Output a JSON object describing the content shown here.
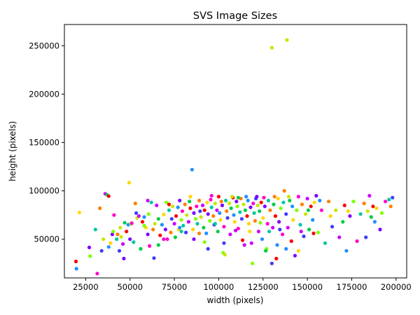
{
  "chart_data": {
    "type": "scatter",
    "title": "SVS Image Sizes",
    "xlabel": "width (pixels)",
    "ylabel": "height (pixels)",
    "xlim": [
      13000,
      206000
    ],
    "ylim": [
      10000,
      272000
    ],
    "xticks": [
      25000,
      50000,
      75000,
      100000,
      125000,
      150000,
      175000,
      200000
    ],
    "yticks": [
      50000,
      100000,
      150000,
      200000,
      250000
    ],
    "grid": false,
    "colors": [
      "#ff0000",
      "#ff7f00",
      "#ffd700",
      "#c8e600",
      "#7fff00",
      "#00cc44",
      "#00c8a0",
      "#1e90ff",
      "#3c3cff",
      "#7f00ff",
      "#cc00ff",
      "#ff00cc"
    ],
    "points": [
      [
        19500,
        27000
      ],
      [
        19800,
        19500
      ],
      [
        21500,
        77500
      ],
      [
        27000,
        41500
      ],
      [
        27500,
        32500
      ],
      [
        31500,
        14500
      ],
      [
        30500,
        60000
      ],
      [
        33000,
        82000
      ],
      [
        34000,
        38000
      ],
      [
        35000,
        50000
      ],
      [
        36000,
        97000
      ],
      [
        37000,
        96000
      ],
      [
        38000,
        94500
      ],
      [
        38000,
        42000
      ],
      [
        39000,
        46000
      ],
      [
        40000,
        55000
      ],
      [
        40500,
        58000
      ],
      [
        41000,
        75000
      ],
      [
        42500,
        50000
      ],
      [
        43000,
        55000
      ],
      [
        44000,
        38000
      ],
      [
        45000,
        52500
      ],
      [
        46000,
        45000
      ],
      [
        47000,
        67000
      ],
      [
        48000,
        58000
      ],
      [
        49000,
        65000
      ],
      [
        49500,
        108500
      ],
      [
        50000,
        50000
      ],
      [
        50500,
        66000
      ],
      [
        51000,
        66500
      ],
      [
        52000,
        47000
      ],
      [
        53000,
        87000
      ],
      [
        53500,
        77000
      ],
      [
        54000,
        72000
      ],
      [
        55000,
        74000
      ],
      [
        56000,
        40000
      ],
      [
        57000,
        68000
      ],
      [
        58000,
        73000
      ],
      [
        59000,
        62000
      ],
      [
        60000,
        55000
      ],
      [
        60500,
        76000
      ],
      [
        61000,
        43000
      ],
      [
        62000,
        88000
      ],
      [
        63000,
        60000
      ],
      [
        63500,
        30500
      ],
      [
        64000,
        66000
      ],
      [
        65000,
        85000
      ],
      [
        66000,
        71000
      ],
      [
        67000,
        54000
      ],
      [
        68000,
        65000
      ],
      [
        69000,
        75500
      ],
      [
        70000,
        60000
      ],
      [
        70500,
        88000
      ],
      [
        71000,
        50000
      ],
      [
        72000,
        80000
      ],
      [
        73000,
        57000
      ],
      [
        73500,
        71000
      ],
      [
        74000,
        84000
      ],
      [
        75000,
        66000
      ],
      [
        75500,
        52000
      ],
      [
        76000,
        74000
      ],
      [
        77000,
        83000
      ],
      [
        77500,
        60000
      ],
      [
        78000,
        90000
      ],
      [
        79000,
        70000
      ],
      [
        79500,
        79000
      ],
      [
        80000,
        64000
      ],
      [
        81000,
        86000
      ],
      [
        81500,
        57000
      ],
      [
        82000,
        75000
      ],
      [
        83000,
        68000
      ],
      [
        83500,
        89000
      ],
      [
        84000,
        82000
      ],
      [
        85000,
        122000
      ],
      [
        85500,
        60000
      ],
      [
        86000,
        77000
      ],
      [
        87000,
        71000
      ],
      [
        87500,
        84000
      ],
      [
        88000,
        66000
      ],
      [
        89000,
        90000
      ],
      [
        89500,
        79000
      ],
      [
        90000,
        73000
      ],
      [
        91000,
        85000
      ],
      [
        91500,
        62000
      ],
      [
        92000,
        80000
      ],
      [
        93000,
        56000
      ],
      [
        93500,
        88000
      ],
      [
        94000,
        76000
      ],
      [
        95000,
        69000
      ],
      [
        95500,
        91000
      ],
      [
        96000,
        83000
      ],
      [
        97000,
        74000
      ],
      [
        97500,
        65000
      ],
      [
        98000,
        87000
      ],
      [
        99000,
        80000
      ],
      [
        99500,
        58000
      ],
      [
        100000,
        94000
      ],
      [
        100500,
        77000
      ],
      [
        101000,
        70000
      ],
      [
        102000,
        85000
      ],
      [
        102500,
        36000
      ],
      [
        103000,
        63000
      ],
      [
        104000,
        90000
      ],
      [
        104500,
        79000
      ],
      [
        105000,
        72000
      ],
      [
        106000,
        87000
      ],
      [
        106500,
        55000
      ],
      [
        107000,
        82000
      ],
      [
        108000,
        93000
      ],
      [
        108500,
        75000
      ],
      [
        109000,
        68000
      ],
      [
        110000,
        89000
      ],
      [
        110500,
        84000
      ],
      [
        111000,
        61000
      ],
      [
        112000,
        78000
      ],
      [
        112500,
        92000
      ],
      [
        113000,
        71000
      ],
      [
        114000,
        86000
      ],
      [
        114500,
        44000
      ],
      [
        115000,
        80000
      ],
      [
        116000,
        74000
      ],
      [
        116500,
        90000
      ],
      [
        117000,
        66000
      ],
      [
        118000,
        83000
      ],
      [
        119000,
        25000
      ],
      [
        119500,
        87000
      ],
      [
        120000,
        77000
      ],
      [
        120500,
        69000
      ],
      [
        121000,
        92000
      ],
      [
        122000,
        85000
      ],
      [
        122500,
        58000
      ],
      [
        123000,
        79000
      ],
      [
        124000,
        88000
      ],
      [
        124500,
        50000
      ],
      [
        125000,
        72000
      ],
      [
        126000,
        84000
      ],
      [
        127000,
        40000
      ],
      [
        127500,
        66000
      ],
      [
        128000,
        90000
      ],
      [
        129000,
        80000
      ],
      [
        130000,
        25000
      ],
      [
        130000,
        248000
      ],
      [
        130500,
        62000
      ],
      [
        131000,
        86000
      ],
      [
        132000,
        74000
      ],
      [
        133000,
        44000
      ],
      [
        133500,
        92000
      ],
      [
        134000,
        68000
      ],
      [
        135000,
        82000
      ],
      [
        136000,
        55000
      ],
      [
        136500,
        88000
      ],
      [
        137000,
        100000
      ],
      [
        138000,
        76000
      ],
      [
        138500,
        256000
      ],
      [
        139000,
        62000
      ],
      [
        140000,
        90000
      ],
      [
        141000,
        48000
      ],
      [
        141500,
        84000
      ],
      [
        142000,
        70000
      ],
      [
        143000,
        33000
      ],
      [
        144000,
        80000
      ],
      [
        145000,
        94000
      ],
      [
        146000,
        65000
      ],
      [
        147000,
        86000
      ],
      [
        148000,
        53000
      ],
      [
        149000,
        76000
      ],
      [
        150000,
        92000
      ],
      [
        151000,
        60000
      ],
      [
        152000,
        84000
      ],
      [
        153000,
        70000
      ],
      [
        154000,
        88000
      ],
      [
        155000,
        95000
      ],
      [
        156000,
        57000
      ],
      [
        158000,
        80000
      ],
      [
        160000,
        46000
      ],
      [
        162000,
        89000
      ],
      [
        164000,
        63000
      ],
      [
        166000,
        80000
      ],
      [
        168000,
        52000
      ],
      [
        170000,
        68000
      ],
      [
        171000,
        85000
      ],
      [
        172000,
        38000
      ],
      [
        173000,
        79000
      ],
      [
        174000,
        74000
      ],
      [
        176000,
        89000
      ],
      [
        178000,
        48000
      ],
      [
        180000,
        76000
      ],
      [
        182000,
        87000
      ],
      [
        183000,
        52000
      ],
      [
        184000,
        79000
      ],
      [
        185000,
        95000
      ],
      [
        186000,
        73000
      ],
      [
        187000,
        84000
      ],
      [
        188000,
        68000
      ],
      [
        189000,
        82000
      ],
      [
        191000,
        60000
      ],
      [
        192000,
        77000
      ],
      [
        194000,
        89000
      ],
      [
        196000,
        91000
      ],
      [
        197000,
        84000
      ],
      [
        198000,
        93000
      ],
      [
        44500,
        62000
      ],
      [
        60000,
        90000
      ],
      [
        66000,
        44000
      ],
      [
        72000,
        86000
      ],
      [
        78000,
        62000
      ],
      [
        84000,
        94000
      ],
      [
        86000,
        50000
      ],
      [
        92000,
        47000
      ],
      [
        96000,
        95000
      ],
      [
        98000,
        66000
      ],
      [
        101500,
        89000
      ],
      [
        103000,
        46000
      ],
      [
        107500,
        94000
      ],
      [
        109500,
        59000
      ],
      [
        111000,
        93000
      ],
      [
        113500,
        49000
      ],
      [
        115500,
        94000
      ],
      [
        117500,
        58000
      ],
      [
        121500,
        94000
      ],
      [
        123500,
        67000
      ],
      [
        125500,
        93000
      ],
      [
        128500,
        58000
      ],
      [
        131500,
        94000
      ],
      [
        134500,
        60000
      ],
      [
        139500,
        94000
      ],
      [
        146500,
        58000
      ],
      [
        150500,
        80000
      ],
      [
        153500,
        56000
      ],
      [
        157000,
        90000
      ],
      [
        163000,
        74000
      ],
      [
        46500,
        30000
      ],
      [
        58000,
        64000
      ],
      [
        69000,
        50000
      ],
      [
        79000,
        58000
      ],
      [
        89000,
        56000
      ],
      [
        94000,
        40000
      ],
      [
        103500,
        34000
      ],
      [
        118500,
        46000
      ],
      [
        126500,
        38000
      ],
      [
        132500,
        30000
      ],
      [
        138000,
        40000
      ],
      [
        145000,
        38000
      ]
    ]
  }
}
